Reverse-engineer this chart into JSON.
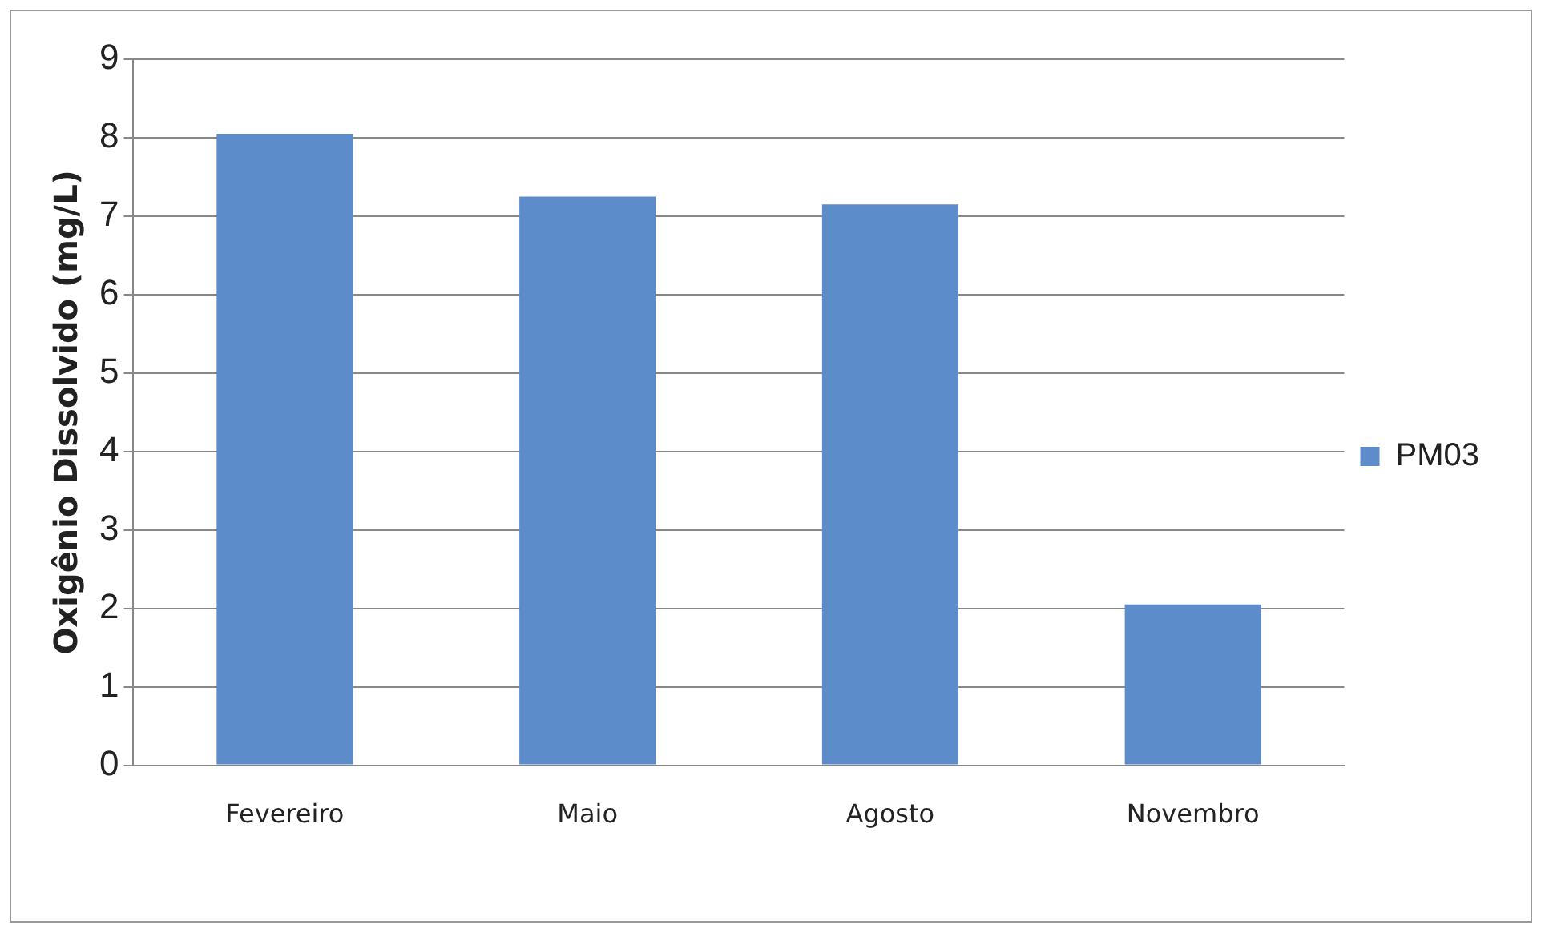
{
  "chart_data": {
    "type": "bar",
    "ylabel": "Oxigênio Dissolvido (mg/L)",
    "categories": [
      "Fevereiro",
      "Maio",
      "Agosto",
      "Novembro"
    ],
    "series": [
      {
        "name": "PM03",
        "color": "#5d8ccb",
        "values": [
          8.05,
          7.25,
          7.15,
          2.05
        ]
      }
    ],
    "ylim": [
      0,
      9
    ],
    "yticks": [
      0,
      1,
      2,
      3,
      4,
      5,
      6,
      7,
      8,
      9
    ],
    "grid": "y",
    "legend": "right"
  }
}
